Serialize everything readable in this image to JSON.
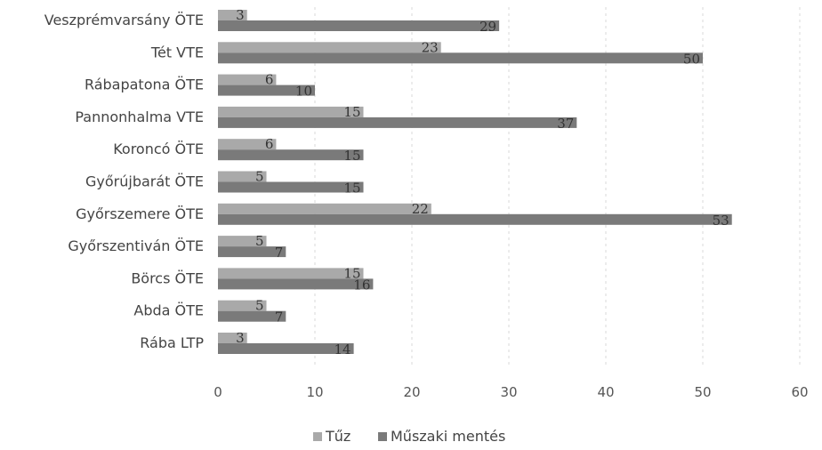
{
  "chart_data": {
    "type": "bar",
    "orientation": "horizontal",
    "categories": [
      "Veszprémvarsány ÖTE",
      "Tét VTE",
      "Rábapatona ÖTE",
      "Pannonhalma VTE",
      "Koroncó ÖTE",
      "Győrújbarát ÖTE",
      "Győrszemere ÖTE",
      "Győrszentiván ÖTE",
      "Börcs ÖTE",
      "Abda ÖTE",
      "Rába LTP"
    ],
    "series": [
      {
        "name": "Tűz",
        "values": [
          3,
          23,
          6,
          15,
          6,
          5,
          22,
          5,
          15,
          5,
          3
        ],
        "color": "#a9a9a9"
      },
      {
        "name": "Műszaki mentés",
        "values": [
          29,
          50,
          10,
          37,
          15,
          15,
          53,
          7,
          16,
          7,
          14
        ],
        "color": "#7a7a7a"
      }
    ],
    "xlim": [
      0,
      60
    ],
    "xticks": [
      "0",
      "10",
      "20",
      "30",
      "40",
      "50",
      "60"
    ],
    "grid": true,
    "legend_position": "bottom"
  }
}
